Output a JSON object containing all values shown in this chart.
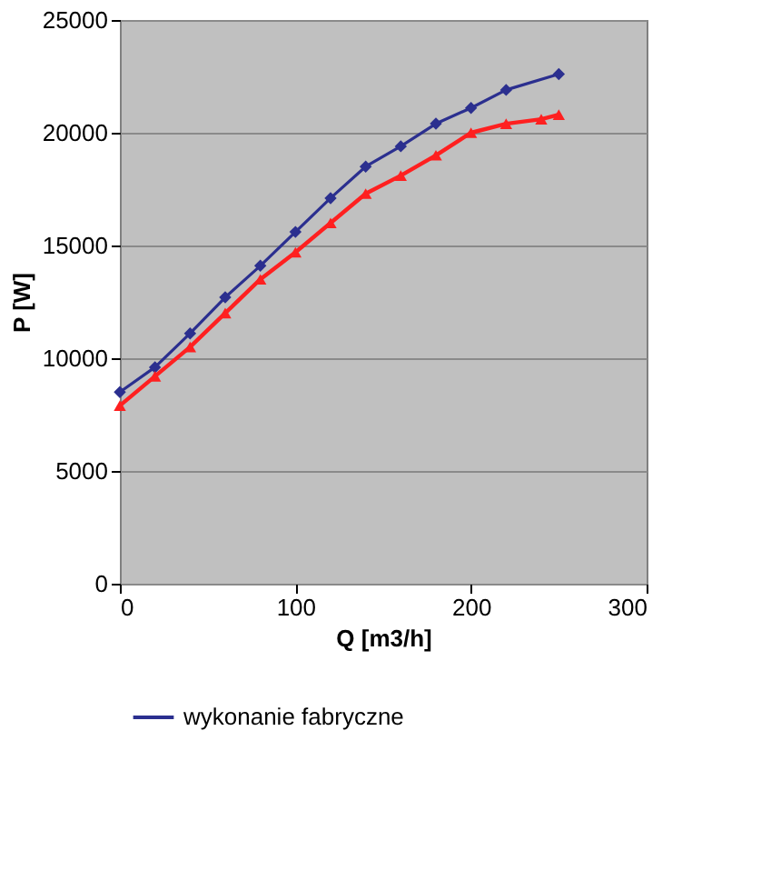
{
  "chart_data": {
    "type": "line",
    "xlabel": "Q [m3/h]",
    "ylabel": "P [W]",
    "xlim": [
      0,
      300
    ],
    "xticks": [
      0,
      100,
      200,
      300
    ],
    "ylim": [
      0,
      25000
    ],
    "yticks": [
      0,
      5000,
      10000,
      15000,
      20000,
      25000
    ],
    "grid": "y",
    "legend": "bottom",
    "series": [
      {
        "name": "wykonanie fabryczne",
        "color": "#2b2f8f",
        "marker": "diamond",
        "x": [
          0,
          20,
          40,
          60,
          80,
          100,
          120,
          140,
          160,
          180,
          200,
          220,
          250
        ],
        "values": [
          8500,
          9600,
          11100,
          12700,
          14100,
          15600,
          17100,
          18500,
          19400,
          20400,
          21100,
          21900,
          22600
        ]
      },
      {
        "color": "#ff2020",
        "marker": "triangle",
        "x": [
          0,
          20,
          40,
          60,
          80,
          100,
          120,
          140,
          160,
          180,
          200,
          220,
          240,
          250
        ],
        "values": [
          7900,
          9200,
          10500,
          12000,
          13500,
          14700,
          16000,
          17300,
          18100,
          19000,
          20000,
          20400,
          20600,
          20800
        ]
      }
    ]
  }
}
